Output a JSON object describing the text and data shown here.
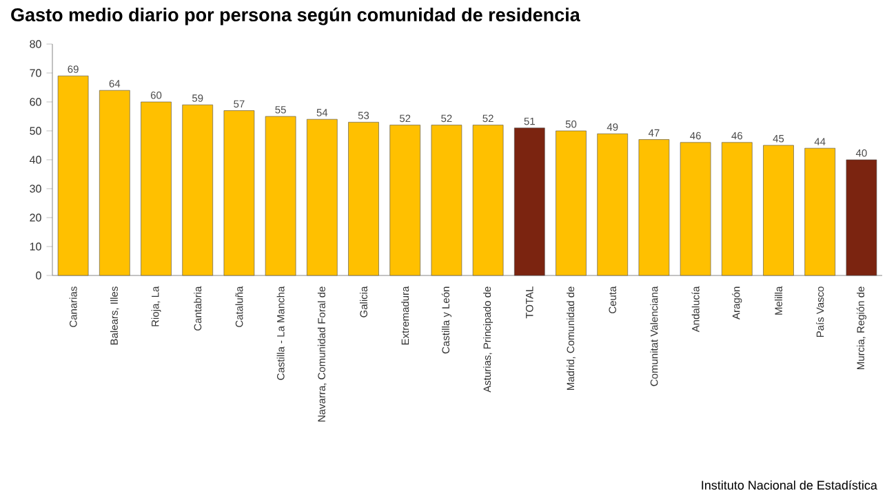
{
  "chart_data": {
    "type": "bar",
    "title": "Gasto medio diario por persona según comunidad de residencia",
    "categories": [
      "Canarias",
      "Balears, Illes",
      "Rioja, La",
      "Cantabria",
      "Cataluña",
      "Castilla - La Mancha",
      "Navarra, Comunidad Foral de",
      "Galicia",
      "Extremadura",
      "Castilla y León",
      "Asturias, Principado de",
      "TOTAL",
      "Madrid, Comunidad de",
      "Ceuta",
      "Comunitat Valenciana",
      "Andalucía",
      "Aragón",
      "Melilla",
      "País Vasco",
      "Murcia, Región de"
    ],
    "values": [
      69,
      64,
      60,
      59,
      57,
      55,
      54,
      53,
      52,
      52,
      52,
      51,
      50,
      49,
      47,
      46,
      46,
      45,
      44,
      40
    ],
    "colors": [
      "#ffc000",
      "#ffc000",
      "#ffc000",
      "#ffc000",
      "#ffc000",
      "#ffc000",
      "#ffc000",
      "#ffc000",
      "#ffc000",
      "#ffc000",
      "#ffc000",
      "#7b2410",
      "#ffc000",
      "#ffc000",
      "#ffc000",
      "#ffc000",
      "#ffc000",
      "#ffc000",
      "#ffc000",
      "#7b2410"
    ],
    "ylim": [
      0,
      80
    ],
    "yticks": [
      0,
      10,
      20,
      30,
      40,
      50,
      60,
      70,
      80
    ],
    "data_labels": true,
    "grid": false,
    "annotations": [
      "Instituto Nacional de Estadística"
    ]
  }
}
